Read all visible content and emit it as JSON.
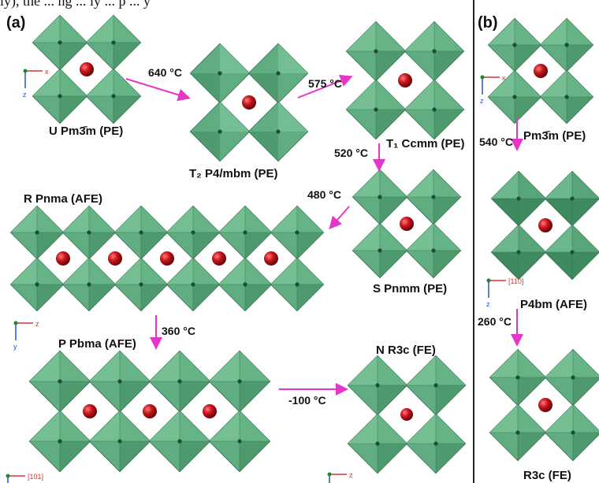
{
  "caption_top": "ly), the ... ng ... ly ... p ... y",
  "colors": {
    "octahedron": "#5fad80",
    "octahedron_dark": "#3e8a5f",
    "atom": "#c8141b",
    "arrow": "#e636c8",
    "divider": "#222222"
  },
  "panel_a": {
    "label": "(a)",
    "phases": [
      {
        "name": "U Pm3̄m (PE)"
      },
      {
        "name": "T₂ P4/mbm (PE)"
      },
      {
        "name": "T₁ Ccmm (PE)"
      },
      {
        "name": "S Pnmm (PE)"
      },
      {
        "name": "R Pnma (AFE)"
      },
      {
        "name": "P Pbma (AFE)"
      },
      {
        "name": "N R3c (FE)"
      }
    ],
    "transitions": [
      "640 °C",
      "575 °C",
      "520 °C",
      "480 °C",
      "360 °C",
      "-100 °C"
    ]
  },
  "panel_b": {
    "label": "(b)",
    "phases": [
      {
        "name": "Pm3̄m (PE)"
      },
      {
        "name": "P4bm (AFE)"
      },
      {
        "name": "R3c (FE)"
      }
    ],
    "transitions": [
      "540 °C",
      "260 °C"
    ]
  },
  "axes_labels": {
    "x": "x",
    "y": "y",
    "z": "z",
    "dir_101": "[101]",
    "dir_110": "[110]"
  }
}
